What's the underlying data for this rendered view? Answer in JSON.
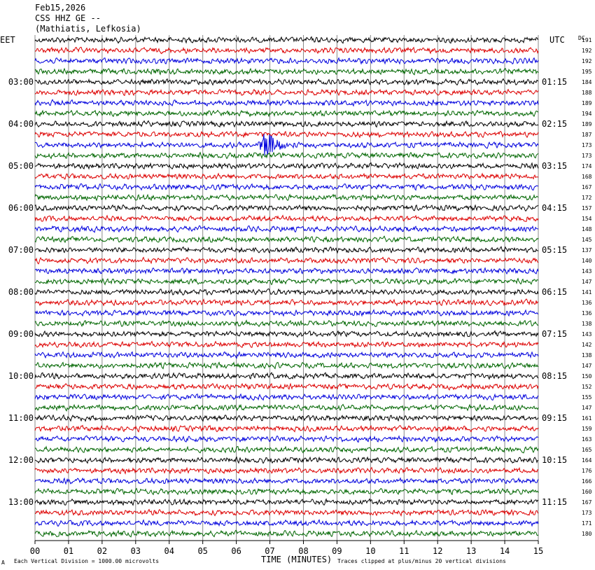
{
  "header": {
    "date": "Feb15,2026",
    "station": "CSS HHZ GE --",
    "location": "(Mathiatis, Lefkosia)"
  },
  "footer": {
    "scale_note": "Each Vertical Division = 1000.00 microvolts",
    "clip_note": "Traces clipped at plus/minus 20 vertical divisions",
    "corner_mark": "A"
  },
  "chart_data": {
    "type": "line",
    "title": "",
    "xlabel": "TIME (MINUTES)",
    "xlim": [
      0,
      15
    ],
    "x_ticks": [
      "00",
      "01",
      "02",
      "03",
      "04",
      "05",
      "06",
      "07",
      "08",
      "09",
      "10",
      "11",
      "12",
      "13",
      "14",
      "15"
    ],
    "grid": true,
    "left_axis_label": "EET",
    "right_axis_label": "UTC",
    "dc_label": "DC",
    "trace_colors": [
      "#000000",
      "#dd0000",
      "#0000dd",
      "#006600"
    ],
    "left_time_labels": [
      {
        "row": 4,
        "text": "03:00"
      },
      {
        "row": 8,
        "text": "04:00"
      },
      {
        "row": 12,
        "text": "05:00"
      },
      {
        "row": 16,
        "text": "06:00"
      },
      {
        "row": 20,
        "text": "07:00"
      },
      {
        "row": 24,
        "text": "08:00"
      },
      {
        "row": 28,
        "text": "09:00"
      },
      {
        "row": 32,
        "text": "10:00"
      },
      {
        "row": 36,
        "text": "11:00"
      },
      {
        "row": 40,
        "text": "12:00"
      },
      {
        "row": 44,
        "text": "13:00"
      }
    ],
    "right_time_labels": [
      {
        "row": 4,
        "text": "01:15"
      },
      {
        "row": 8,
        "text": "02:15"
      },
      {
        "row": 12,
        "text": "03:15"
      },
      {
        "row": 16,
        "text": "04:15"
      },
      {
        "row": 20,
        "text": "05:15"
      },
      {
        "row": 24,
        "text": "06:15"
      },
      {
        "row": 28,
        "text": "07:15"
      },
      {
        "row": 32,
        "text": "08:15"
      },
      {
        "row": 36,
        "text": "09:15"
      },
      {
        "row": 40,
        "text": "10:15"
      },
      {
        "row": 44,
        "text": "11:15"
      }
    ],
    "dc_offsets": [
      191,
      192,
      192,
      195,
      184,
      188,
      189,
      194,
      189,
      187,
      173,
      173,
      174,
      168,
      167,
      172,
      157,
      154,
      148,
      145,
      137,
      140,
      143,
      147,
      141,
      136,
      136,
      138,
      143,
      142,
      138,
      147,
      150,
      152,
      155,
      147,
      161,
      159,
      163,
      165,
      164,
      176,
      166,
      160,
      167,
      173,
      171,
      180
    ],
    "events": [
      {
        "trace": 10,
        "minute": 6.9,
        "amplitude": "large"
      }
    ],
    "trace_count": 48
  }
}
